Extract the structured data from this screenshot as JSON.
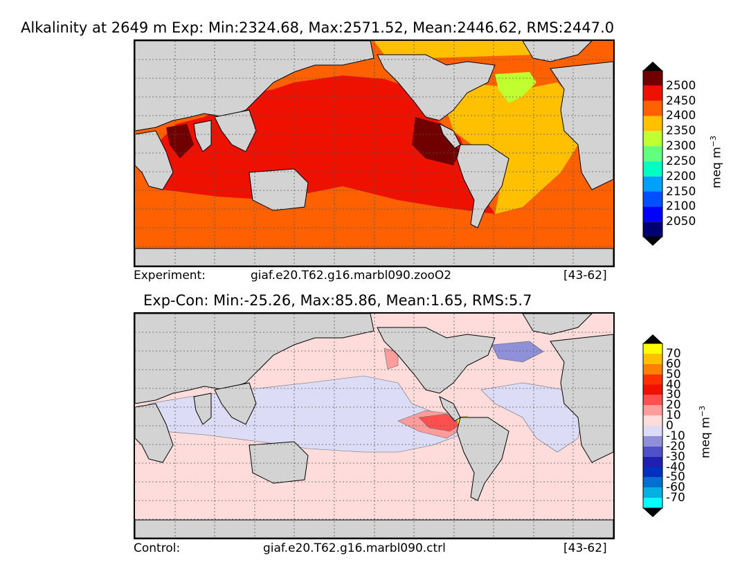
{
  "top_panel": {
    "title": "Alkalinity at 2649 m Exp: Min:2324.68, Max:2571.52, Mean:2446.62, RMS:2447.0",
    "caption_label": "Experiment:",
    "caption_case": "giaf.e20.T62.g16.marbl090.zooO2",
    "caption_years": "[43-62]",
    "colorbar": {
      "unit_base": "meq m",
      "unit_exp": "−3",
      "levels": [
        "2050",
        "2100",
        "2150",
        "2200",
        "2250",
        "2300",
        "2350",
        "2400",
        "2450",
        "2500"
      ],
      "colors": [
        "#000070",
        "#0000ff",
        "#0050ff",
        "#00a0ff",
        "#00ffc0",
        "#60ff80",
        "#c0ff30",
        "#ffc000",
        "#ff6000",
        "#ee1100",
        "#700000"
      ],
      "over_color": "#000000",
      "under_color": "#000000"
    }
  },
  "bottom_panel": {
    "title": "Exp-Con: Min:-25.26, Max:85.86, Mean:1.65, RMS:5.7",
    "caption_label": "Control:",
    "caption_case": "giaf.e20.T62.g16.marbl090.ctrl",
    "caption_years": "[43-62]",
    "colorbar": {
      "unit_base": "meq m",
      "unit_exp": "−3",
      "levels": [
        "-70",
        "-60",
        "-50",
        "-40",
        "-30",
        "-20",
        "-10",
        "0",
        "10",
        "20",
        "30",
        "40",
        "50",
        "60",
        "70"
      ],
      "colors": [
        "#00ffff",
        "#00b0e0",
        "#0070d0",
        "#0030c0",
        "#2020b0",
        "#5050c8",
        "#9090d8",
        "#dcdcf6",
        "#ffdcdc",
        "#ff9c9c",
        "#ff5050",
        "#ee1100",
        "#ff3000",
        "#ff8000",
        "#ffc000",
        "#ffff00"
      ],
      "over_color": "#000000",
      "under_color": "#000000"
    }
  },
  "colors": {
    "land": "#d3d3d3",
    "ice_gap": "#ffffff",
    "grid": "#555555"
  }
}
